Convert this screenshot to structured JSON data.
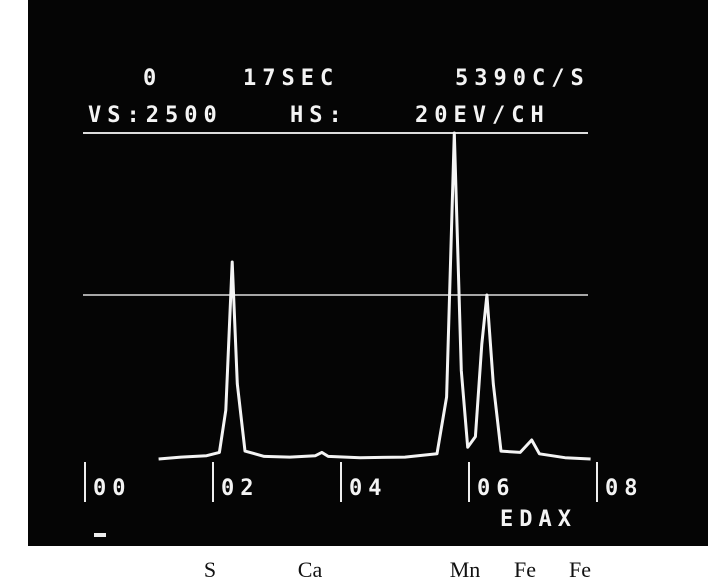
{
  "chart_data": {
    "type": "line",
    "header": {
      "frame": "0",
      "time": "17SEC",
      "rate": "5390C/S",
      "vertical_scale": "VS:2500",
      "horizontal_label": "HS:",
      "horizontal_scale": "20EV/CH"
    },
    "brand": "EDAX",
    "xlim": [
      0,
      8
    ],
    "xticks": [
      {
        "value": 0,
        "label": "00"
      },
      {
        "value": 2,
        "label": "02"
      },
      {
        "value": 4,
        "label": "04"
      },
      {
        "value": 6,
        "label": "06"
      },
      {
        "value": 8,
        "label": "08"
      }
    ],
    "ylim": [
      0,
      2500
    ],
    "x": [
      1.15,
      1.5,
      1.9,
      2.1,
      2.2,
      2.3,
      2.38,
      2.5,
      2.8,
      3.2,
      3.6,
      3.7,
      3.8,
      4.3,
      5.0,
      5.5,
      5.65,
      5.77,
      5.88,
      5.98,
      6.1,
      6.2,
      6.28,
      6.38,
      6.5,
      6.8,
      6.98,
      7.1,
      7.5,
      7.9
    ],
    "values": [
      30,
      45,
      55,
      80,
      400,
      1523,
      600,
      90,
      50,
      45,
      55,
      80,
      50,
      40,
      45,
      70,
      500,
      2500,
      700,
      120,
      200,
      900,
      1273,
      600,
      90,
      80,
      174,
      70,
      40,
      30
    ],
    "color": "#f4f4f4",
    "peak_labels": [
      "S",
      "Ca",
      "Mn",
      "Fe",
      "Fe"
    ]
  }
}
